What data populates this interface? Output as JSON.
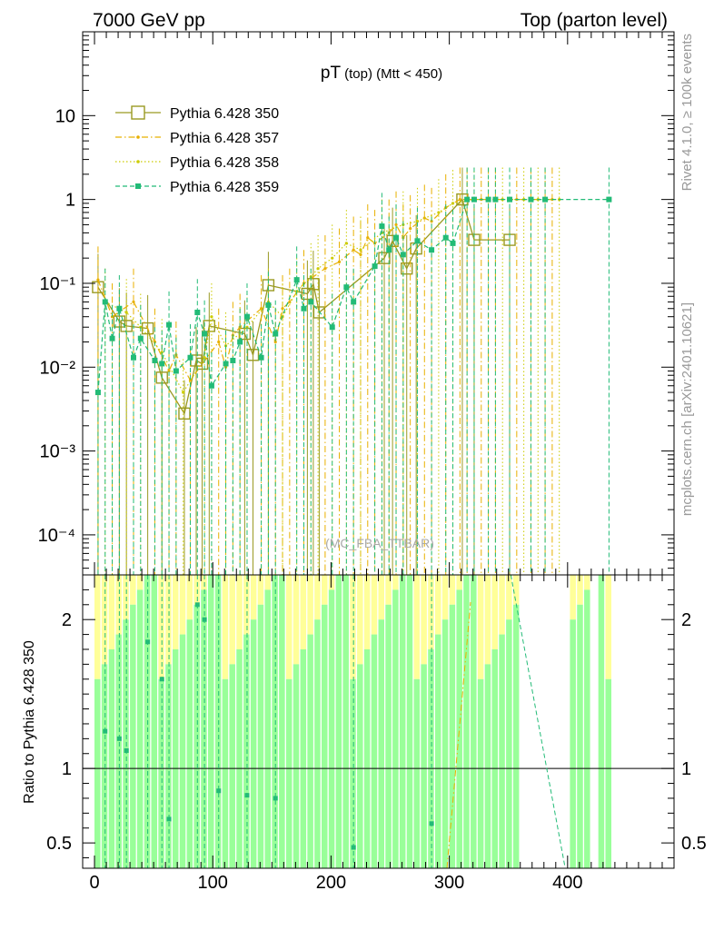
{
  "header": {
    "left": "7000 GeV pp",
    "right": "Top (parton level)"
  },
  "side_labels": {
    "rivet": "Rivet 4.1.0, ≥ 100k events",
    "mcplots": "mcplots.cern.ch [arXiv:2401.10621]"
  },
  "chart_data": {
    "type": "line",
    "title_main": "pT",
    "title_sub": "(top) (Mtt < 450)",
    "watermark": "(MC_FBA_TTBAR)",
    "xlabel": "",
    "ylabel_ratio": "Ratio to Pythia 6.428 350",
    "xlim": [
      -10,
      490
    ],
    "ylim_main": [
      3.33e-05,
      100
    ],
    "ylim_ratio": [
      0.33,
      2.3
    ],
    "yscale_main": "log",
    "x_ticks": [
      0,
      100,
      200,
      300,
      400
    ],
    "x_tick_labels": [
      "0",
      "100",
      "200",
      "300",
      "400"
    ],
    "y_ticks_main": [
      0.0001,
      0.001,
      0.01,
      0.1,
      1,
      10
    ],
    "y_tick_labels_main": [
      "10⁻⁴",
      "10⁻³",
      "10⁻²",
      "10⁻¹",
      "1",
      "10"
    ],
    "y_ticks_ratio": [
      0.5,
      1,
      2
    ],
    "y_tick_labels_ratio": [
      "0.5",
      "1",
      "2"
    ],
    "legend_position": "top-left",
    "series": [
      {
        "name": "Pythia 6.428 350",
        "color": "#9a9a22",
        "style": "solid",
        "marker": "open-square",
        "x": [
          3,
          21,
          27,
          45,
          57,
          76,
          86,
          91,
          97,
          127,
          134,
          147,
          180,
          185,
          190,
          245,
          252,
          264,
          272,
          311,
          321,
          351
        ],
        "y": [
          0.09,
          0.035,
          0.031,
          0.029,
          0.0075,
          0.0028,
          0.012,
          0.011,
          0.031,
          0.025,
          0.014,
          0.095,
          0.075,
          0.098,
          0.045,
          0.2,
          0.32,
          0.15,
          0.26,
          1.0,
          0.33,
          0.33
        ]
      },
      {
        "name": "Pythia 6.428 357",
        "color": "#e8b000",
        "style": "dashdot",
        "marker": "dot",
        "x": [
          3,
          15,
          33,
          51,
          63,
          69,
          81,
          105,
          111,
          117,
          123,
          141,
          153,
          159,
          165,
          177,
          195,
          207,
          219,
          225,
          231,
          237,
          249,
          255,
          261,
          267,
          279,
          285,
          297,
          309,
          315,
          327,
          333,
          339,
          357,
          369,
          381,
          387
        ],
        "y": [
          0.11,
          0.04,
          0.06,
          0.02,
          0.009,
          0.014,
          0.007,
          0.02,
          0.01,
          0.024,
          0.03,
          0.05,
          0.02,
          0.05,
          0.06,
          0.1,
          0.15,
          0.18,
          0.25,
          0.22,
          0.35,
          0.3,
          0.4,
          0.5,
          0.35,
          0.45,
          0.6,
          0.55,
          0.8,
          1.0,
          1.0,
          1.0,
          1.0,
          1.0,
          1.0,
          1.0,
          1.0,
          1.0
        ]
      },
      {
        "name": "Pythia 6.428 358",
        "color": "#cccc00",
        "style": "dotted",
        "marker": "dot",
        "x": [
          9,
          27,
          39,
          57,
          75,
          93,
          99,
          111,
          129,
          147,
          159,
          171,
          183,
          189,
          201,
          213,
          225,
          243,
          261,
          273,
          291,
          303,
          321,
          345,
          363,
          375,
          393
        ],
        "y": [
          0.06,
          0.045,
          0.03,
          0.015,
          0.005,
          0.013,
          0.04,
          0.018,
          0.03,
          0.06,
          0.04,
          0.08,
          0.12,
          0.15,
          0.2,
          0.3,
          0.25,
          0.4,
          0.5,
          0.55,
          0.7,
          0.9,
          1.0,
          1.0,
          1.0,
          1.0,
          1.0
        ]
      },
      {
        "name": "Pythia 6.428 359",
        "color": "#22bb77",
        "style": "dashed",
        "marker": "filled-square",
        "x": [
          3,
          9,
          15,
          21,
          33,
          39,
          51,
          57,
          63,
          69,
          81,
          87,
          93,
          99,
          111,
          117,
          123,
          129,
          141,
          147,
          153,
          171,
          177,
          183,
          201,
          213,
          219,
          237,
          243,
          249,
          255,
          261,
          273,
          285,
          297,
          303,
          315,
          321,
          333,
          339,
          351,
          369,
          381,
          435
        ],
        "y": [
          0.005,
          0.06,
          0.022,
          0.05,
          0.013,
          0.022,
          0.012,
          0.011,
          0.032,
          0.009,
          0.013,
          0.045,
          0.025,
          0.006,
          0.011,
          0.012,
          0.02,
          0.04,
          0.013,
          0.055,
          0.025,
          0.11,
          0.05,
          0.06,
          0.03,
          0.09,
          0.06,
          0.16,
          0.48,
          0.25,
          0.35,
          0.22,
          0.32,
          0.25,
          0.35,
          0.3,
          1.0,
          1.0,
          1.0,
          1.0,
          1.0,
          1.0,
          1.0,
          1.0
        ]
      }
    ],
    "ratio_series": [
      {
        "name": "Pythia 6.428 359",
        "x": [
          9,
          21,
          27,
          45,
          57,
          63,
          87,
          93,
          105,
          129,
          153,
          219,
          285
        ],
        "y": [
          1.25,
          1.2,
          1.12,
          1.85,
          1.6,
          0.66,
          2.1,
          2.0,
          0.85,
          0.82,
          0.8,
          0.47,
          0.63
        ]
      }
    ]
  }
}
